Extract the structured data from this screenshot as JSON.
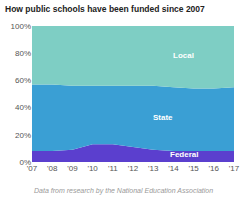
{
  "chart_data": {
    "type": "area",
    "stacked": true,
    "title": "How public schools have been funded since 2007",
    "caption": "Data from research by the National Education Association",
    "x": [
      2007,
      2008,
      2009,
      2010,
      2011,
      2012,
      2013,
      2014,
      2015,
      2016,
      2017
    ],
    "series": [
      {
        "name": "Federal",
        "color": "#5b3fce",
        "values": [
          8.0,
          8.0,
          9.0,
          13.0,
          13.0,
          11.0,
          9.0,
          8.0,
          8.0,
          8.0,
          8.0
        ]
      },
      {
        "name": "State",
        "color": "#3a9fd4",
        "values": [
          49.0,
          49.0,
          47.0,
          43.0,
          43.0,
          45.0,
          47.0,
          47.0,
          46.0,
          46.0,
          47.0
        ]
      },
      {
        "name": "Local",
        "color": "#7ecec4",
        "values": [
          43.0,
          43.0,
          44.0,
          44.0,
          44.0,
          44.0,
          44.0,
          45.0,
          46.0,
          46.0,
          45.0
        ]
      }
    ],
    "annotations": [
      {
        "text": "Federal",
        "x": 2014.5,
        "y": 5.5
      },
      {
        "text": "State",
        "x": 2013.5,
        "y": 33
      },
      {
        "text": "Local",
        "x": 2014.5,
        "y": 78
      }
    ],
    "xlim": [
      2007,
      2017
    ],
    "xticks": [
      {
        "value": 2007,
        "label": "'07"
      },
      {
        "value": 2008,
        "label": "'08"
      },
      {
        "value": 2009,
        "label": "'09"
      },
      {
        "value": 2010,
        "label": "'10"
      },
      {
        "value": 2011,
        "label": "'11"
      },
      {
        "value": 2012,
        "label": "'12"
      },
      {
        "value": 2013,
        "label": "'13"
      },
      {
        "value": 2014,
        "label": "'14"
      },
      {
        "value": 2015,
        "label": "'15"
      },
      {
        "value": 2016,
        "label": "'16"
      },
      {
        "value": 2017,
        "label": "'17"
      }
    ],
    "ylim": [
      0,
      100
    ],
    "yticks": [
      {
        "value": 0,
        "label": "0%"
      },
      {
        "value": 20,
        "label": "20%"
      },
      {
        "value": 40,
        "label": "40%"
      },
      {
        "value": 60,
        "label": "60%"
      },
      {
        "value": 80,
        "label": "80%"
      },
      {
        "value": 100,
        "label": "100%"
      }
    ],
    "grid": true
  }
}
